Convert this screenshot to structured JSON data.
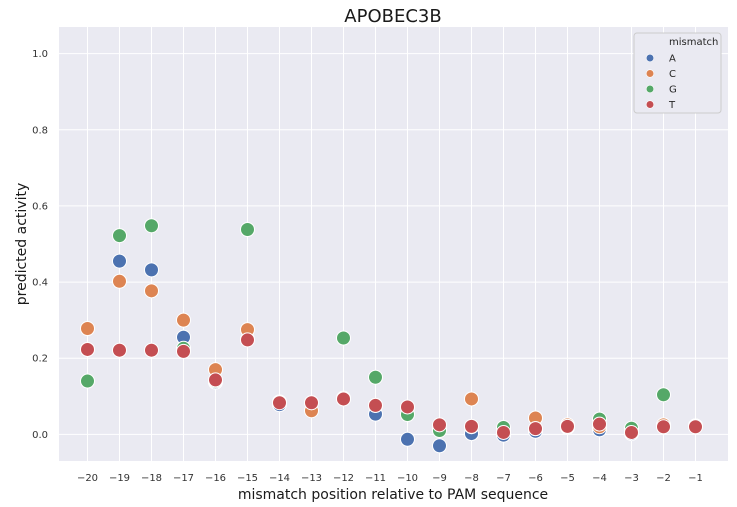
{
  "chart_data": {
    "type": "scatter",
    "title": "APOBEC3B",
    "xlabel": "mismatch position relative to PAM sequence",
    "ylabel": "predicted activity",
    "categories": [
      "−20",
      "−19",
      "−18",
      "−17",
      "−16",
      "−15",
      "−14",
      "−13",
      "−12",
      "−11",
      "−10",
      "−9",
      "−8",
      "−7",
      "−6",
      "−5",
      "−4",
      "−3",
      "−2",
      "−1"
    ],
    "x": [
      -20,
      -19,
      -18,
      -17,
      -16,
      -15,
      -14,
      -13,
      -12,
      -11,
      -10,
      -9,
      -8,
      -7,
      -6,
      -5,
      -4,
      -3,
      -2,
      -1
    ],
    "ylim": [
      -0.07,
      1.07
    ],
    "yticks": [
      0.0,
      0.2,
      0.4,
      0.6,
      0.8,
      1.0
    ],
    "ytick_labels": [
      "0.0",
      "0.2",
      "0.4",
      "0.6",
      "0.8",
      "1.0"
    ],
    "grid": true,
    "legend": {
      "title": "mismatch",
      "placement": "top-right"
    },
    "series": [
      {
        "name": "A",
        "color": "#4c72b0",
        "values": [
          0.223,
          0.455,
          0.432,
          0.255,
          0.137,
          0.25,
          0.078,
          0.083,
          0.093,
          0.053,
          -0.013,
          -0.03,
          0.002,
          -0.002,
          0.008,
          0.018,
          0.012,
          0.002,
          0.02,
          0.022
        ]
      },
      {
        "name": "C",
        "color": "#dd8452",
        "values": [
          0.278,
          0.402,
          0.377,
          0.3,
          0.17,
          0.275,
          0.085,
          0.062,
          0.095,
          0.076,
          0.07,
          0.015,
          0.093,
          0.008,
          0.043,
          0.025,
          0.02,
          0.01,
          0.025,
          0.022
        ]
      },
      {
        "name": "G",
        "color": "#55a868",
        "values": [
          0.14,
          0.522,
          0.548,
          0.226,
          0.14,
          0.538,
          0.085,
          0.083,
          0.253,
          0.15,
          0.052,
          0.01,
          0.02,
          0.018,
          0.015,
          0.02,
          0.04,
          0.016,
          0.104,
          0.022
        ]
      },
      {
        "name": "T",
        "color": "#c44e52",
        "values": [
          0.223,
          0.221,
          0.221,
          0.218,
          0.143,
          0.248,
          0.083,
          0.083,
          0.093,
          0.076,
          0.072,
          0.025,
          0.021,
          0.005,
          0.015,
          0.021,
          0.027,
          0.005,
          0.02,
          0.02
        ]
      }
    ]
  }
}
